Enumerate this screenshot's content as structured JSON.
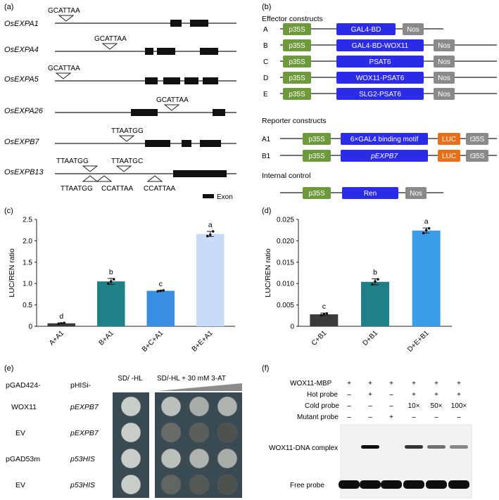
{
  "panels": {
    "a": "(a)",
    "b": "(b)",
    "c": "(c)",
    "d": "(d)",
    "e": "(e)",
    "f": "(f)"
  },
  "panel_a": {
    "genes": [
      {
        "name": "OsEXPA1",
        "motifs_top": [
          "GCATTAA"
        ],
        "motifs_bottom": []
      },
      {
        "name": "OsEXPA4",
        "motifs_top": [
          "GCATTAA"
        ],
        "motifs_bottom": []
      },
      {
        "name": "OsEXPA5",
        "motifs_top": [
          "GCATTAA"
        ],
        "motifs_bottom": []
      },
      {
        "name": "OsEXPA26",
        "motifs_top": [
          "GCATTAA"
        ],
        "motifs_bottom": []
      },
      {
        "name": "OsEXPB7",
        "motifs_top": [
          "TTAATGG"
        ],
        "motifs_bottom": []
      },
      {
        "name": "OsEXPB13",
        "motifs_top": [
          "TTAATGG",
          "TTAATGC"
        ],
        "motifs_bottom": [
          "TTAATGG",
          "CCATTAA",
          "CCATTAA"
        ]
      }
    ],
    "legend": "Exon"
  },
  "panel_b": {
    "effector_title": "Effector constructs",
    "effectors": [
      {
        "id": "A",
        "boxes": [
          "p35S",
          "GAL4-BD",
          "Nos"
        ]
      },
      {
        "id": "B",
        "boxes": [
          "p35S",
          "GAL4-BD-WOX11",
          "Nos"
        ]
      },
      {
        "id": "C",
        "boxes": [
          "p35S",
          "PSAT6",
          "Nos"
        ]
      },
      {
        "id": "D",
        "boxes": [
          "p35S",
          "WOX11-PSAT6",
          "Nos"
        ]
      },
      {
        "id": "E",
        "boxes": [
          "p35S",
          "SLG2-PSAT6",
          "Nos"
        ]
      }
    ],
    "reporter_title": "Reporter constructs",
    "reporters": [
      {
        "id": "A1",
        "boxes": [
          "p35S",
          "6×GAL4 binding motif",
          "LUC",
          "t35S"
        ]
      },
      {
        "id": "B1",
        "boxes": [
          "p35S",
          "pEXPB7",
          "LUC",
          "t35S"
        ]
      }
    ],
    "internal_title": "Internal control",
    "internal": {
      "boxes": [
        "p35S",
        "Ren",
        "Nos"
      ]
    },
    "colors": {
      "promoter": "#6e9a3c",
      "gene": "#2b2be8",
      "terminator": "#8a8a8a",
      "luc": "#e8701a"
    }
  },
  "chart_data": [
    {
      "type": "bar",
      "panel": "c",
      "categories": [
        "A+A1",
        "B+A1",
        "B+C+A1",
        "B+E+A1"
      ],
      "values": [
        0.07,
        1.05,
        0.83,
        2.16
      ],
      "errors": [
        0.01,
        0.07,
        0.01,
        0.06
      ],
      "letters": [
        "d",
        "b",
        "c",
        "a"
      ],
      "colors": [
        "#3a3a3a",
        "#1e7f86",
        "#3a8ee0",
        "#c9dcf7"
      ],
      "points": [
        [
          0.06,
          0.07,
          0.08
        ],
        [
          1.0,
          1.05,
          1.1
        ],
        [
          0.82,
          0.83,
          0.84
        ],
        [
          2.11,
          2.14,
          2.22
        ]
      ],
      "ylabel": "LUC/REN ratio",
      "ylim": [
        0,
        2.5
      ],
      "yticks": [
        "0",
        "0.5",
        "1.0",
        "1.5",
        "2.0",
        "2.5"
      ],
      "ytick_values": [
        0,
        0.5,
        1.0,
        1.5,
        2.0,
        2.5
      ]
    },
    {
      "type": "bar",
      "panel": "d",
      "categories": [
        "C+B1",
        "D+B1",
        "D+E+B1"
      ],
      "values": [
        0.0028,
        0.0104,
        0.0224
      ],
      "errors": [
        0.0003,
        0.0007,
        0.0006
      ],
      "letters": [
        "c",
        "b",
        "a"
      ],
      "colors": [
        "#3a3a3a",
        "#1e7f86",
        "#3a9de8"
      ],
      "points": [
        [
          0.0026,
          0.0028,
          0.003
        ],
        [
          0.0098,
          0.0105,
          0.011
        ],
        [
          0.0218,
          0.0225,
          0.0229
        ]
      ],
      "ylabel": "LUC/REN ratio",
      "ylim": [
        0,
        0.025
      ],
      "yticks": [
        "0",
        "0.005",
        "0.010",
        "0.015",
        "0.020",
        "0.025"
      ],
      "ytick_values": [
        0,
        0.005,
        0.01,
        0.015,
        0.02,
        0.025
      ]
    }
  ],
  "panel_e": {
    "col1_header": "pGAD424-",
    "col2_header": "pHISi-",
    "media1": "SD/ -HL",
    "media2": "SD/-HL + 30 mM 3-AT",
    "rows": [
      {
        "ad": "WOX11",
        "bait": "pEXPB7",
        "growth": [
          1.0,
          0.9,
          0.75,
          0.8
        ]
      },
      {
        "ad": "EV",
        "bait": "pEXPB7",
        "growth": [
          1.0,
          0.25,
          0.15,
          0.05
        ]
      },
      {
        "ad": "pGAD53m",
        "bait": "p53HIS",
        "growth": [
          1.0,
          0.9,
          0.8,
          0.75
        ]
      },
      {
        "ad": "EV",
        "bait": "p53HIS",
        "growth": [
          1.0,
          0.2,
          0.1,
          0.05
        ]
      }
    ]
  },
  "panel_f": {
    "rows": [
      {
        "label": "WOX11-MBP",
        "cells": [
          "+",
          "+",
          "+",
          "+",
          "+",
          "+"
        ]
      },
      {
        "label": "Hot probe",
        "cells": [
          "–",
          "+",
          "–",
          "+",
          "+",
          "+"
        ]
      },
      {
        "label": "Cold probe",
        "cells": [
          "–",
          "–",
          "–",
          "10×",
          "50×",
          "100×"
        ]
      },
      {
        "label": "Mutant probe",
        "cells": [
          "–",
          "–",
          "+",
          "–",
          "–",
          "–"
        ]
      }
    ],
    "complex_label": "WOX11-DNA complex",
    "free_label": "Free probe",
    "complex_bands": [
      0,
      1.0,
      0,
      0.85,
      0.6,
      0.5
    ]
  }
}
